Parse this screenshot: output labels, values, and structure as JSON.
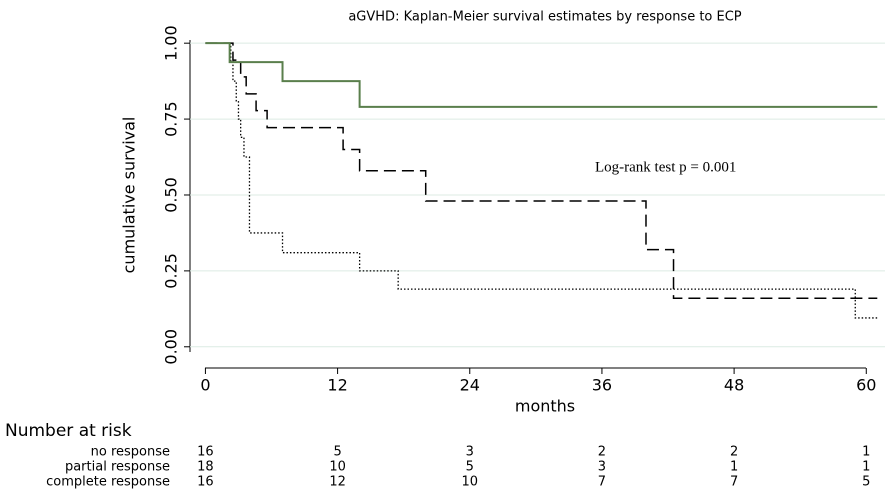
{
  "chart_data": {
    "type": "step",
    "title": "aGVHD: Kaplan-Meier survival estimates by response to ECP",
    "x_label": "months",
    "y_label": "cumulative survival",
    "annotation": "Log-rank test p = 0.001",
    "xlim": [
      -1.4,
      61.7
    ],
    "xticks": [
      0,
      12,
      24,
      36,
      48,
      60
    ],
    "ylim": [
      -0.06,
      1.05
    ],
    "yticks": [
      {
        "value": 0,
        "label": "0.00"
      },
      {
        "value": 0.25,
        "label": "0.25"
      },
      {
        "value": 0.5,
        "label": "0.50"
      },
      {
        "value": 0.75,
        "label": "0.75"
      },
      {
        "value": 1,
        "label": "1.00"
      }
    ],
    "grid": true,
    "grid_color": "#dcebe3",
    "risk_table_title": "Number at risk",
    "series": [
      {
        "name": "no response",
        "color": "#000000",
        "dash": "1.5,2",
        "width": 1.3,
        "x": [
          0,
          2.3,
          2.5,
          2.8,
          3,
          3.2,
          3.5,
          4,
          7,
          14,
          17.5,
          59,
          61
        ],
        "values": [
          1,
          0.94,
          0.875,
          0.81,
          0.75,
          0.69,
          0.625,
          0.375,
          0.31,
          0.25,
          0.19,
          0.095,
          0.095
        ],
        "at_risk": [
          16,
          5,
          3,
          2,
          2,
          1
        ]
      },
      {
        "name": "partial response",
        "color": "#000000",
        "dash": "12,6",
        "width": 1.5,
        "x": [
          0,
          2.5,
          3.2,
          3.7,
          4.6,
          5.6,
          12.5,
          14,
          20,
          40,
          42.5,
          61
        ],
        "values": [
          1,
          0.944,
          0.889,
          0.833,
          0.778,
          0.722,
          0.65,
          0.58,
          0.48,
          0.32,
          0.16,
          0.16
        ],
        "at_risk": [
          18,
          10,
          5,
          3,
          1,
          1
        ]
      },
      {
        "name": "complete response",
        "color": "#5a7f4c",
        "dash": "none",
        "width": 2,
        "x": [
          0,
          2.2,
          7,
          14,
          61
        ],
        "values": [
          1,
          0.9375,
          0.875,
          0.79,
          0.79
        ],
        "at_risk": [
          16,
          12,
          10,
          7,
          7,
          5
        ]
      }
    ]
  }
}
